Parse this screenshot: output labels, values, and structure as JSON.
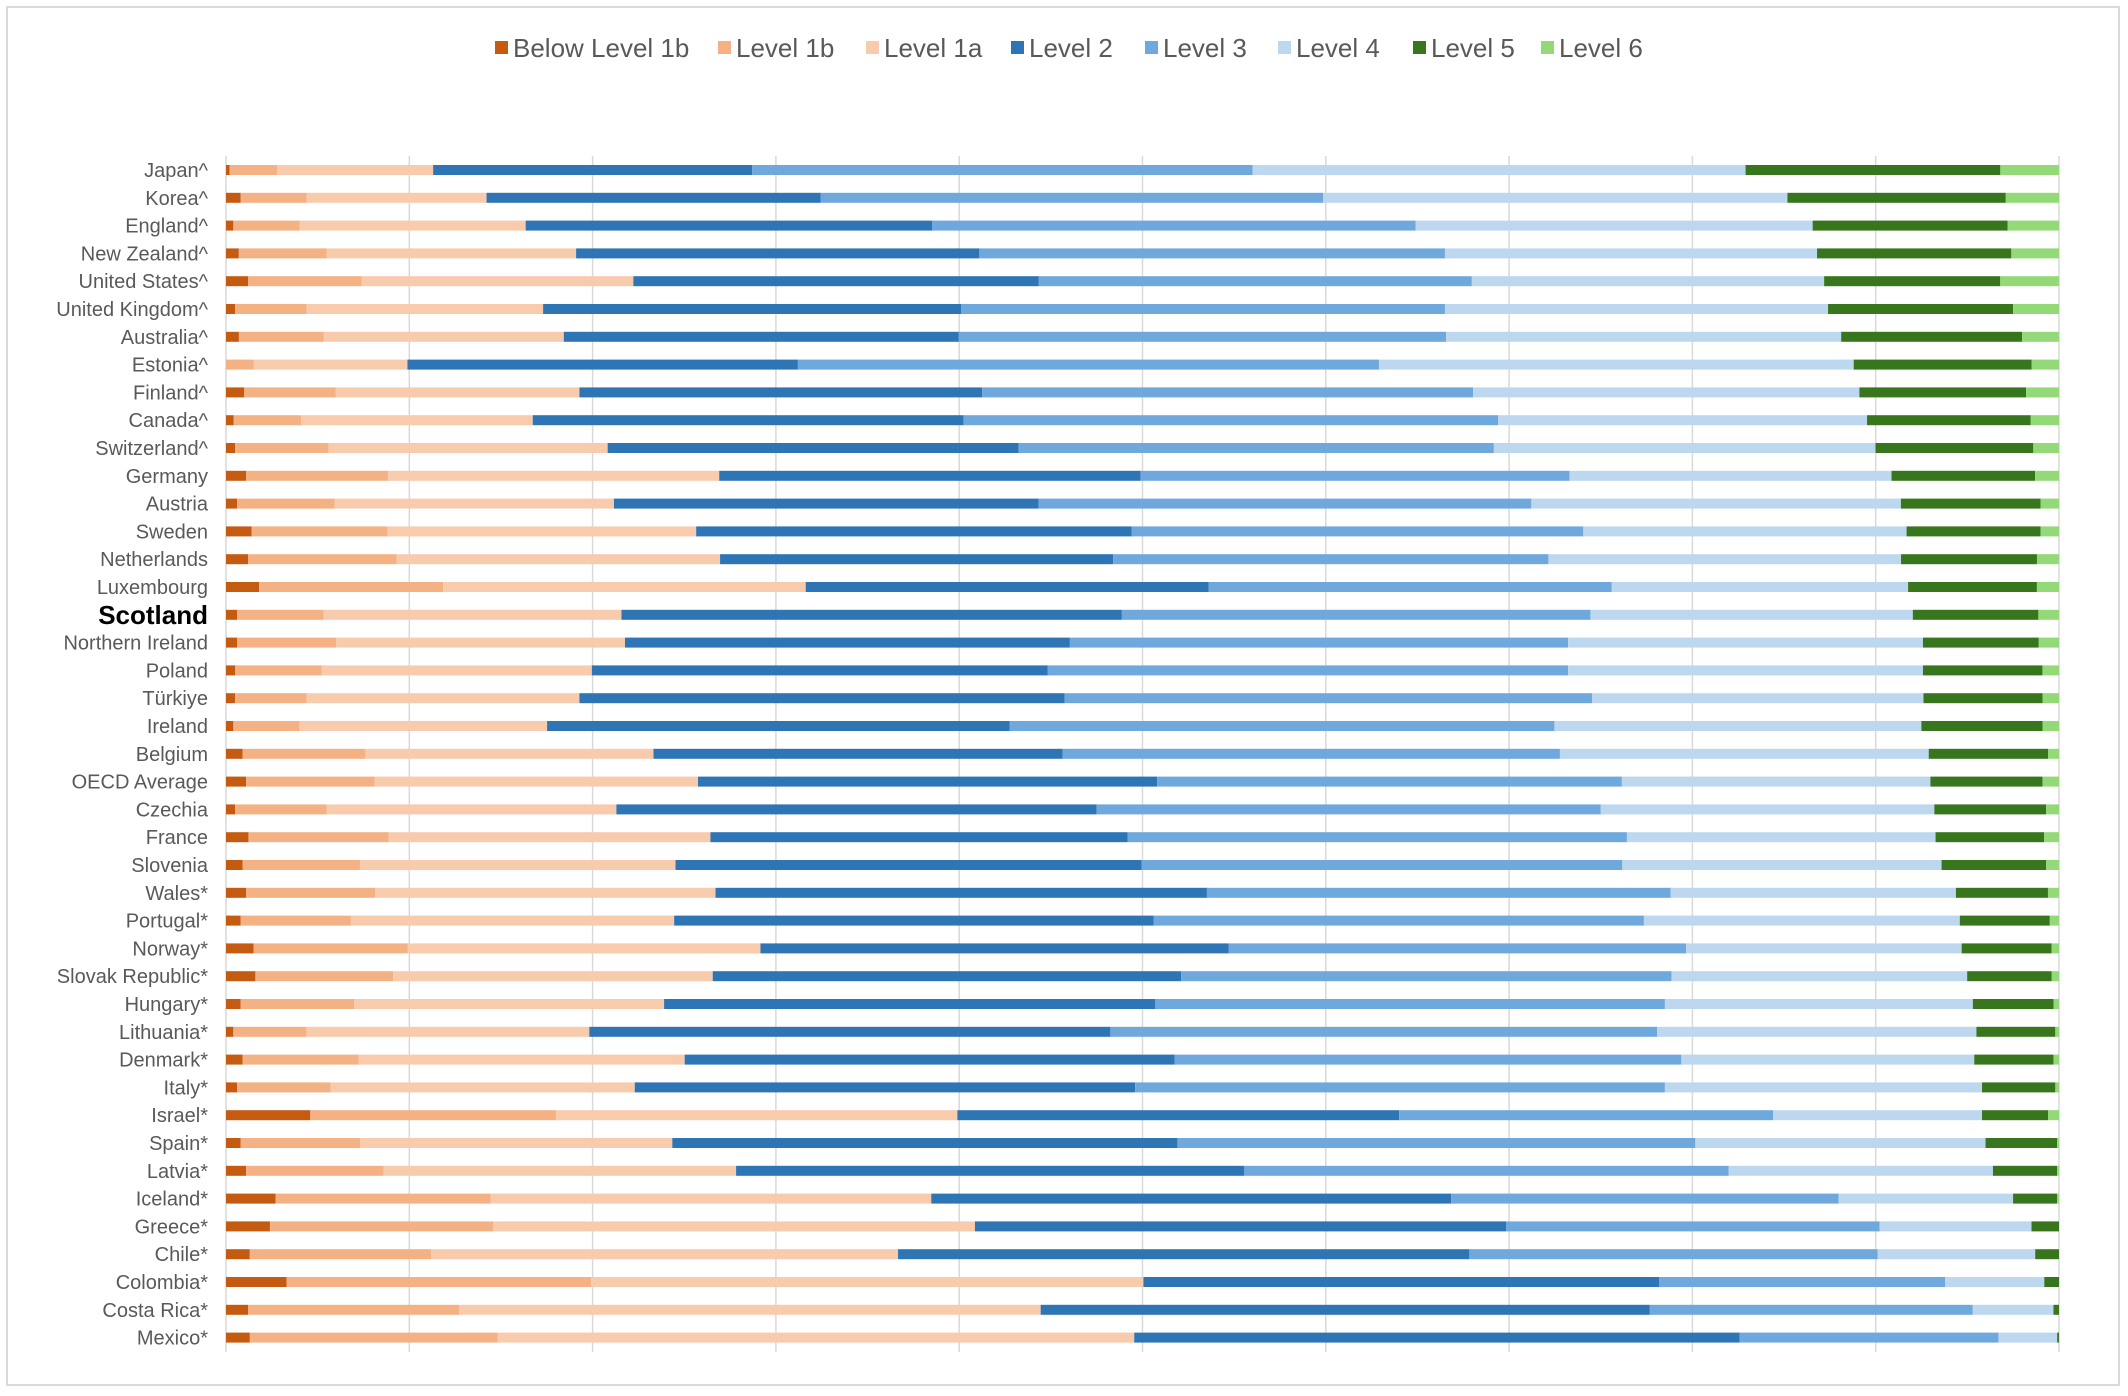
{
  "chart_data": {
    "type": "bar",
    "orientation": "horizontal",
    "stacked": "percent",
    "title": "",
    "xlabel": "",
    "ylabel": "",
    "xlim": [
      0,
      100
    ],
    "grid": true,
    "legend_position": "top",
    "highlight_category": "Scotland",
    "categories": [
      "Japan^",
      "Korea^",
      "England^",
      "New Zealand^",
      "United States^",
      "United Kingdom^",
      "Australia^",
      "Estonia^",
      "Finland^",
      "Canada^",
      "Switzerland^",
      "Germany",
      "Austria",
      "Sweden",
      "Netherlands",
      "Luxembourg",
      "Scotland",
      "Northern Ireland",
      "Poland",
      "Türkiye",
      "Ireland",
      "Belgium",
      "OECD Average",
      "Czechia",
      "France",
      "Slovenia",
      "Wales*",
      "Portugal*",
      "Norway*",
      "Slovak Republic*",
      "Hungary*",
      "Lithuania*",
      "Denmark*",
      "Italy*",
      "Israel*",
      "Spain*",
      "Latvia*",
      "Iceland*",
      "Greece*",
      "Chile*",
      "Colombia*",
      "Costa Rica*",
      "Mexico*"
    ],
    "series": [
      {
        "name": "Below Level 1b",
        "color": "#c55a11",
        "values": [
          0.2,
          0.8,
          0.4,
          0.7,
          1.2,
          0.5,
          0.7,
          0.0,
          1.0,
          0.4,
          0.5,
          1.1,
          0.6,
          1.4,
          1.2,
          1.8,
          0.6,
          0.6,
          0.5,
          0.5,
          0.4,
          0.9,
          1.1,
          0.5,
          1.2,
          0.9,
          1.1,
          0.8,
          1.5,
          1.6,
          0.8,
          0.4,
          0.9,
          0.6,
          4.6,
          0.8,
          1.1,
          2.7,
          2.4,
          1.3,
          3.3,
          1.2,
          1.3
        ]
      },
      {
        "name": "Level 1b",
        "color": "#f4b183",
        "values": [
          2.6,
          3.6,
          3.6,
          4.8,
          6.2,
          3.9,
          4.6,
          1.5,
          5.0,
          3.6,
          5.1,
          7.7,
          5.3,
          7.4,
          8.1,
          10.0,
          4.6,
          5.4,
          4.7,
          3.9,
          3.6,
          6.7,
          7.0,
          5.0,
          7.5,
          6.4,
          7.0,
          6.0,
          8.4,
          7.5,
          6.2,
          4.0,
          6.3,
          5.1,
          13.4,
          6.5,
          7.5,
          11.7,
          12.2,
          9.9,
          16.6,
          11.5,
          13.5
        ]
      },
      {
        "name": "Level 1a",
        "color": "#f8cbad",
        "values": [
          8.5,
          9.8,
          12.3,
          13.6,
          14.8,
          12.9,
          13.0,
          8.4,
          13.3,
          12.3,
          15.2,
          18.0,
          15.2,
          16.8,
          17.6,
          19.7,
          15.9,
          15.7,
          14.7,
          14.9,
          13.5,
          15.7,
          17.6,
          15.8,
          17.2,
          17.2,
          18.5,
          17.6,
          19.2,
          17.4,
          16.9,
          15.4,
          17.7,
          16.6,
          21.9,
          17.0,
          19.2,
          24.0,
          26.3,
          25.5,
          30.1,
          31.7,
          34.7
        ]
      },
      {
        "name": "Level 2",
        "color": "#2e75b6",
        "values": [
          17.4,
          18.2,
          22.1,
          22.0,
          22.1,
          22.8,
          21.4,
          21.3,
          22.0,
          22.9,
          22.4,
          22.9,
          23.1,
          23.7,
          21.4,
          21.9,
          26.7,
          24.2,
          24.8,
          26.5,
          25.2,
          22.3,
          25.0,
          26.2,
          22.3,
          25.4,
          26.7,
          26.1,
          25.5,
          25.5,
          26.8,
          28.4,
          26.6,
          27.3,
          24.1,
          27.5,
          27.7,
          28.3,
          29.0,
          31.2,
          28.1,
          33.2,
          33.0
        ]
      },
      {
        "name": "Level 3",
        "color": "#6fa8dc",
        "values": [
          27.3,
          27.4,
          26.3,
          25.4,
          23.6,
          26.4,
          26.4,
          31.7,
          26.8,
          28.4,
          25.9,
          23.3,
          26.8,
          24.6,
          23.7,
          21.9,
          25.0,
          27.1,
          28.3,
          28.8,
          29.7,
          27.1,
          25.3,
          27.5,
          26.7,
          26.2,
          25.2,
          26.7,
          24.9,
          26.7,
          27.8,
          29.8,
          27.5,
          28.9,
          20.4,
          28.2,
          26.4,
          21.1,
          20.4,
          22.3,
          15.6,
          17.6,
          14.1
        ]
      },
      {
        "name": "Level 4",
        "color": "#bdd7ee",
        "values": [
          26.9,
          25.3,
          21.6,
          20.3,
          19.2,
          20.9,
          21.4,
          25.9,
          21.1,
          19.6,
          20.8,
          17.5,
          20.1,
          17.6,
          19.2,
          16.1,
          17.2,
          19.3,
          19.3,
          18.1,
          20.0,
          20.1,
          16.8,
          18.2,
          16.5,
          17.4,
          15.5,
          17.2,
          15.0,
          16.1,
          16.8,
          17.4,
          15.9,
          17.3,
          11.4,
          15.8,
          14.4,
          9.5,
          8.3,
          8.6,
          5.4,
          4.4,
          3.2
        ]
      },
      {
        "name": "Level 5",
        "color": "#38761d",
        "values": [
          13.9,
          11.9,
          10.6,
          10.6,
          9.6,
          10.1,
          9.8,
          9.7,
          9.1,
          8.7,
          8.6,
          7.8,
          7.6,
          7.3,
          7.4,
          7.0,
          6.7,
          6.3,
          6.5,
          6.5,
          6.6,
          6.5,
          6.1,
          6.1,
          5.8,
          5.7,
          5.0,
          4.9,
          4.9,
          4.6,
          4.4,
          4.3,
          4.3,
          4.0,
          3.6,
          3.9,
          3.5,
          2.4,
          1.5,
          1.3,
          0.8,
          0.3,
          0.1
        ]
      },
      {
        "name": "Level 6",
        "color": "#93d978",
        "values": [
          3.2,
          2.9,
          2.8,
          2.6,
          3.2,
          2.5,
          2.0,
          1.5,
          1.8,
          1.5,
          1.4,
          1.3,
          1.0,
          1.0,
          1.2,
          1.2,
          1.1,
          1.1,
          0.9,
          0.9,
          0.9,
          0.6,
          0.9,
          0.7,
          0.8,
          0.7,
          0.6,
          0.5,
          0.4,
          0.4,
          0.3,
          0.2,
          0.3,
          0.2,
          0.6,
          0.1,
          0.1,
          0.1,
          0.0,
          0.0,
          0.0,
          0.0,
          0.0
        ]
      }
    ]
  }
}
